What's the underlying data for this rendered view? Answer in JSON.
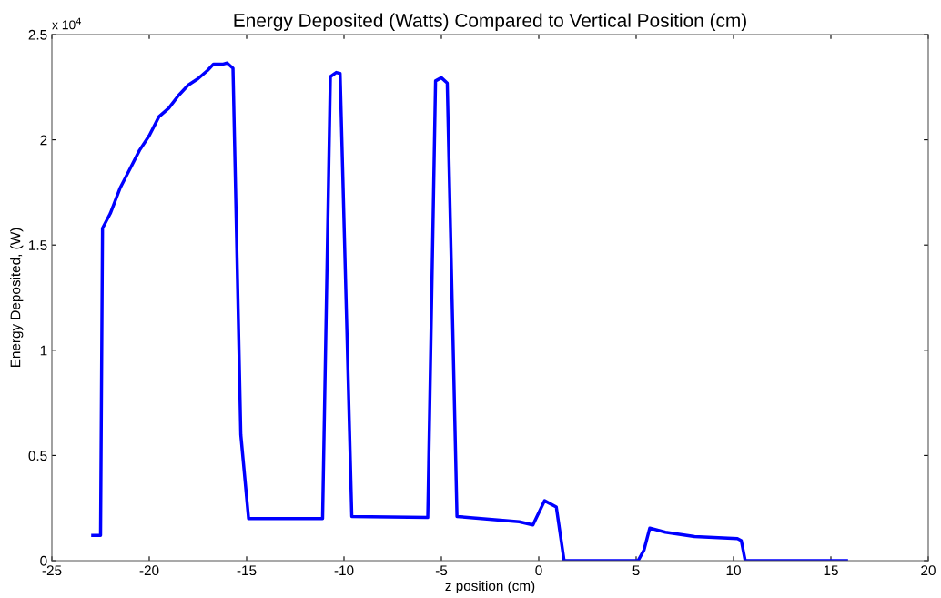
{
  "chart_data": {
    "type": "line",
    "title": "Energy Deposited (Watts) Compared to Vertical Position (cm)",
    "xlabel": "z position (cm)",
    "ylabel": "Energy Deposited, (W)",
    "annotations": [
      "x 10$^{4}$"
    ],
    "series": [
      {
        "color": "#0000ff",
        "x": [
          -22.9,
          -22.5,
          -22.4,
          -22,
          -21.5,
          -21,
          -20.5,
          -20,
          -19.5,
          -19,
          -18.5,
          -18,
          -17.5,
          -17,
          -16.7,
          -16.2,
          -16,
          -15.7,
          -15.3,
          -14.9,
          -11.1,
          -10.7,
          -10.4,
          -10.2,
          -9.6,
          -5.7,
          -5.3,
          -5,
          -4.7,
          -4.2,
          -1,
          -0.3,
          0.3,
          0.9,
          1.3,
          5.1,
          5.4,
          5.7,
          6.5,
          8,
          10.2,
          10.4,
          10.6,
          15.8
        ],
        "values": [
          0.12,
          0.12,
          1.58,
          1.65,
          1.77,
          1.86,
          1.95,
          2.02,
          2.11,
          2.15,
          2.21,
          2.26,
          2.29,
          2.33,
          2.36,
          2.36,
          2.365,
          2.34,
          0.6,
          0.2,
          0.2,
          2.3,
          2.32,
          2.315,
          0.21,
          0.205,
          2.28,
          2.295,
          2.27,
          0.21,
          0.185,
          0.17,
          0.285,
          0.255,
          0,
          0,
          0.05,
          0.155,
          0.135,
          0.115,
          0.105,
          0.095,
          0,
          0
        ]
      }
    ],
    "xlim": [
      -25,
      20
    ],
    "xticks": [
      -25,
      -20,
      -15,
      -10,
      -5,
      0,
      5,
      10,
      15,
      20
    ],
    "ylim": [
      0,
      2.5
    ],
    "yticks": [
      0,
      0.5,
      1,
      1.5,
      2,
      2.5
    ],
    "grid": false,
    "marker": "none",
    "line_style": "solid"
  }
}
